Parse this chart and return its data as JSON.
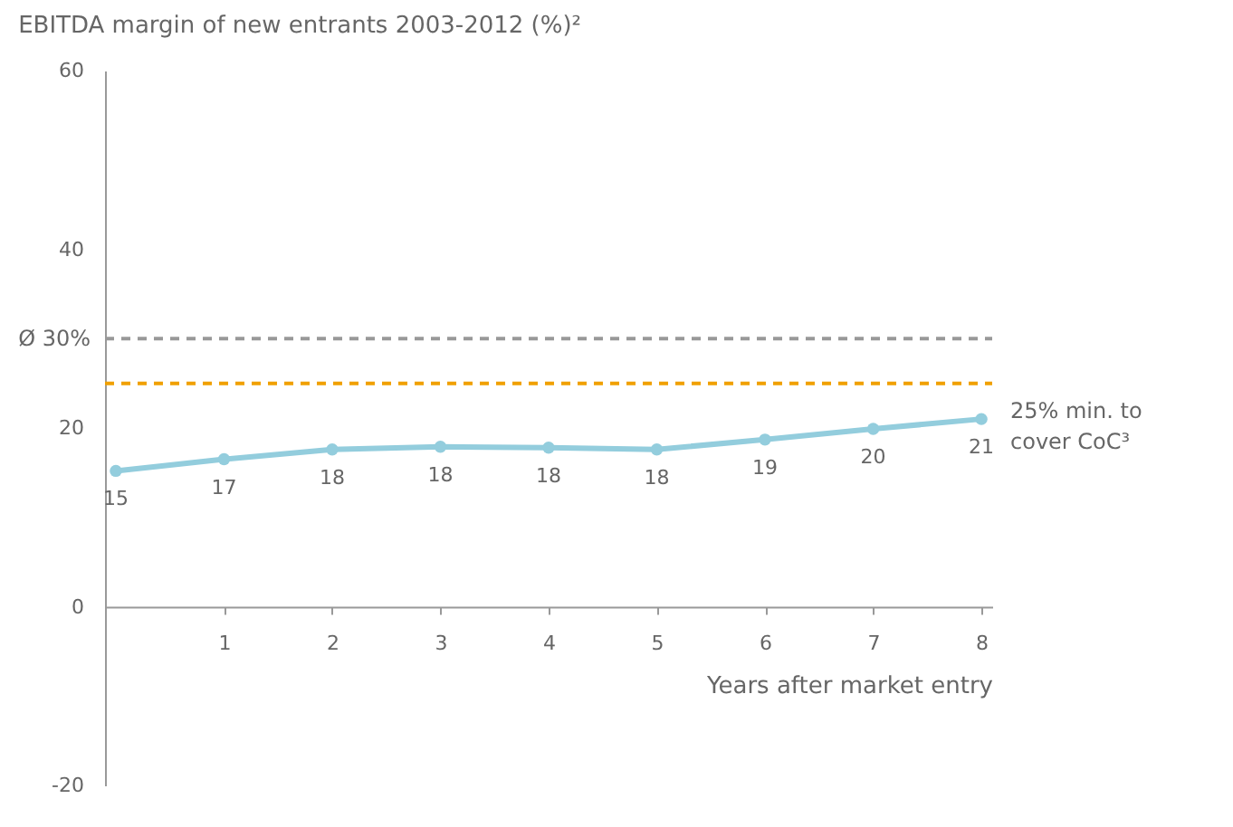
{
  "chart_data": {
    "type": "line",
    "title": "EBITDA margin of new entrants 2003-2012 (%)²",
    "xlabel": "Years after market entry",
    "x": [
      0,
      1,
      2,
      3,
      4,
      5,
      6,
      7,
      8
    ],
    "series": [
      {
        "color": "#93cddd",
        "values": [
          15.2,
          16.5,
          17.6,
          17.9,
          17.8,
          17.6,
          18.7,
          19.9,
          21.0
        ],
        "value_labels": [
          "15",
          "17",
          "18",
          "18",
          "18",
          "18",
          "19",
          "20",
          "21"
        ]
      }
    ],
    "xlim": [
      -0.1,
      8.1
    ],
    "xticks": [
      1,
      2,
      3,
      4,
      5,
      6,
      7,
      8
    ],
    "ylim": [
      -20,
      60
    ],
    "yticks": [
      -20,
      0,
      20,
      40,
      60
    ],
    "ref_lines": [
      {
        "axis": "y",
        "value": 30,
        "label": "Ø 30%",
        "color": "#999999",
        "line_style": "dashed"
      },
      {
        "axis": "y",
        "value": 25,
        "label": "25% min. to cover CoC³",
        "color": "#f0a000",
        "line_style": "dashed"
      }
    ],
    "marker": "circle",
    "grid": false
  }
}
